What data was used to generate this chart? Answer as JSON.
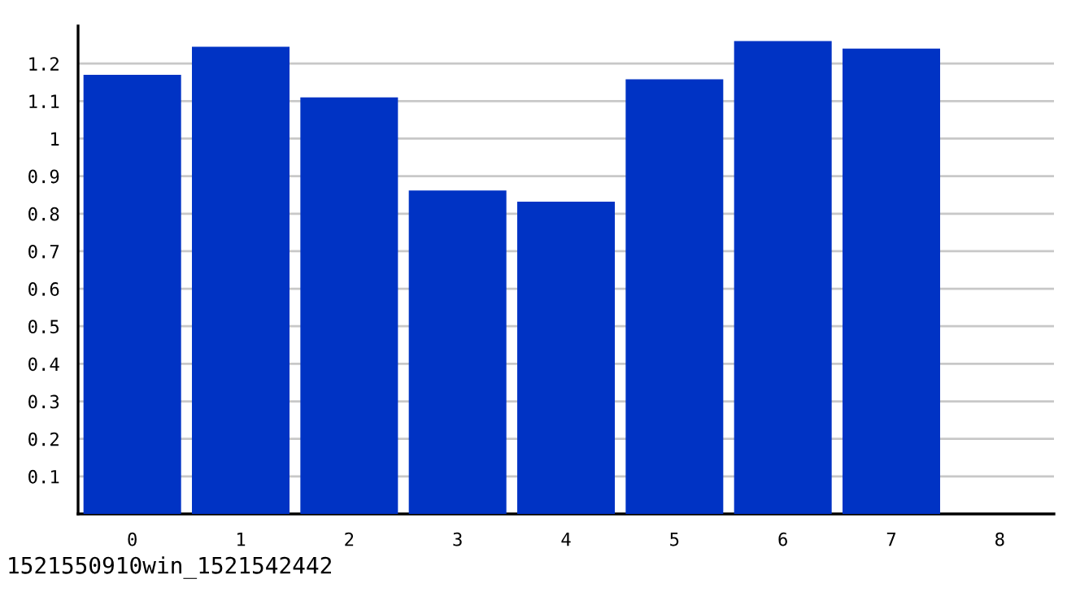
{
  "chart_data": {
    "type": "bar",
    "categories": [
      "0",
      "1",
      "2",
      "3",
      "4",
      "5",
      "6",
      "7",
      "8"
    ],
    "values": [
      1.17,
      1.245,
      1.11,
      0.862,
      0.832,
      1.158,
      1.26,
      1.24,
      null
    ],
    "color": "#0033c4",
    "ylim": [
      0,
      1.3
    ],
    "yticks": [
      0.1,
      0.2,
      0.3,
      0.4,
      0.5,
      0.6,
      0.7,
      0.8,
      0.9,
      1,
      1.1,
      1.2
    ],
    "grid": "y",
    "legend": false,
    "annotations": [
      "1521550910win_1521542442"
    ]
  }
}
